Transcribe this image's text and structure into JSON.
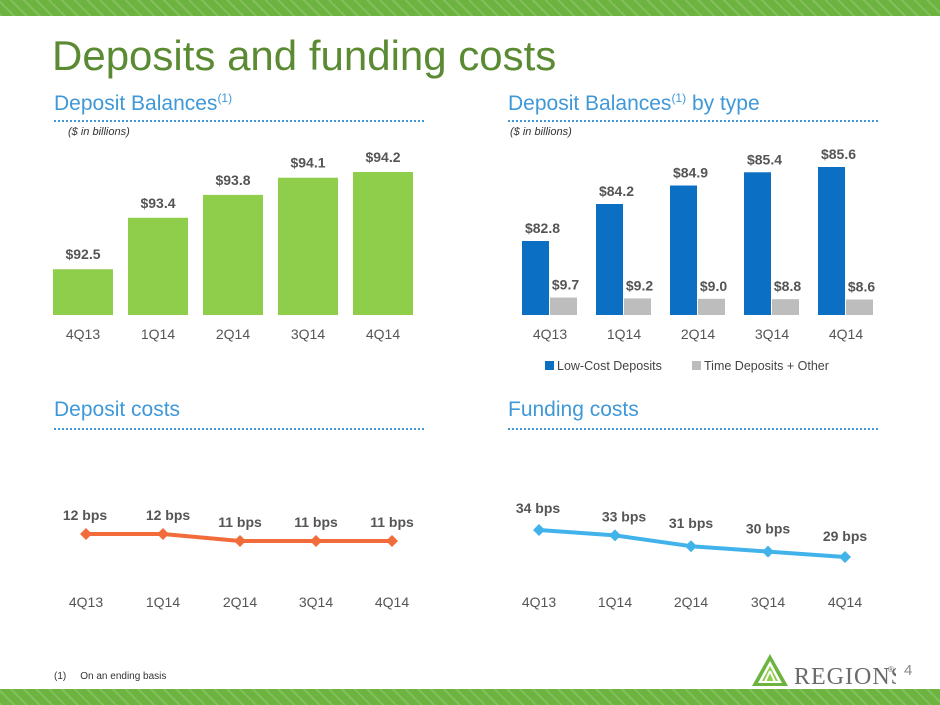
{
  "title": "Deposits and funding costs",
  "sections": {
    "balances": {
      "title": "Deposit Balances",
      "sup": "(1)",
      "unit": "($ in billions)"
    },
    "by_type": {
      "title": "Deposit Balances",
      "sup": "(1)",
      "suffix": " by type",
      "unit": "($ in billions)"
    },
    "deposit_costs": {
      "title": "Deposit costs"
    },
    "funding_costs": {
      "title": "Funding costs"
    }
  },
  "chart_data": [
    {
      "id": "deposit-balances",
      "type": "bar",
      "categories": [
        "4Q13",
        "1Q14",
        "2Q14",
        "3Q14",
        "4Q14"
      ],
      "values": [
        92.5,
        93.4,
        93.8,
        94.1,
        94.2
      ],
      "labels": [
        "$92.5",
        "$93.4",
        "$93.8",
        "$94.1",
        "$94.2"
      ],
      "title": "Deposit Balances(1)",
      "ylabel": "($ in billions)",
      "colors": {
        "bar": "#8fce4a"
      }
    },
    {
      "id": "deposit-balances-by-type",
      "type": "bar",
      "categories": [
        "4Q13",
        "1Q14",
        "2Q14",
        "3Q14",
        "4Q14"
      ],
      "series": [
        {
          "name": "Low-Cost Deposits",
          "values": [
            82.8,
            84.2,
            84.9,
            85.4,
            85.6
          ],
          "labels": [
            "$82.8",
            "$84.2",
            "$84.9",
            "$85.4",
            "$85.6"
          ],
          "color": "#0b6fc4"
        },
        {
          "name": "Time Deposits + Other",
          "values": [
            9.7,
            9.2,
            9.0,
            8.8,
            8.6
          ],
          "labels": [
            "$9.7",
            "$9.2",
            "$9.0",
            "$8.8",
            "$8.6"
          ],
          "color": "#bdbdbd"
        }
      ],
      "title": "Deposit Balances(1) by type",
      "ylabel": "($ in billions)",
      "legend": "bottom"
    },
    {
      "id": "deposit-costs",
      "type": "line",
      "categories": [
        "4Q13",
        "1Q14",
        "2Q14",
        "3Q14",
        "4Q14"
      ],
      "values": [
        12,
        12,
        11,
        11,
        11
      ],
      "labels": [
        "12 bps",
        "12 bps",
        "11 bps",
        "11 bps",
        "11 bps"
      ],
      "title": "Deposit costs",
      "colors": {
        "line": "#f26b3a"
      }
    },
    {
      "id": "funding-costs",
      "type": "line",
      "categories": [
        "4Q13",
        "1Q14",
        "2Q14",
        "3Q14",
        "4Q14"
      ],
      "values": [
        34,
        33,
        31,
        30,
        29
      ],
      "labels": [
        "34 bps",
        "33 bps",
        "31 bps",
        "30 bps",
        "29 bps"
      ],
      "title": "Funding costs",
      "colors": {
        "line": "#41b2ea"
      }
    }
  ],
  "footnote": {
    "number": "(1)",
    "text": "On an ending basis"
  },
  "logo": {
    "name": "REGIONS",
    "mark": "®"
  },
  "page_number": "4",
  "colors": {
    "green": "#6cb33f",
    "title": "#5a8a32",
    "section": "#3f98d8"
  }
}
